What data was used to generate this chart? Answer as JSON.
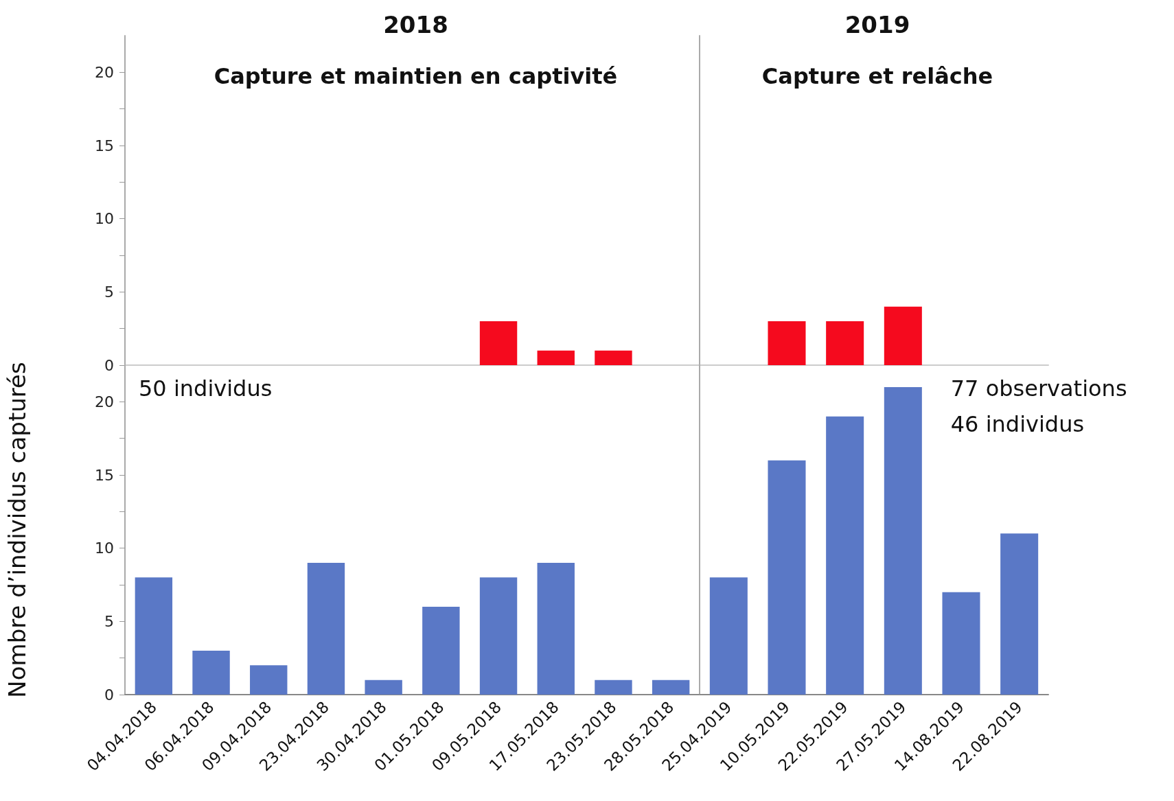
{
  "chart_data": [
    {
      "type": "bar",
      "title": "2018",
      "subtitle": "Capture et maintien en captivité",
      "categories": [
        "04.04.2018",
        "06.04.2018",
        "09.04.2018",
        "23.04.2018",
        "30.04.2018",
        "01.05.2018",
        "09.05.2018",
        "17.05.2018",
        "23.05.2018",
        "28.05.2018"
      ],
      "values": [
        0,
        0,
        0,
        0,
        0,
        0,
        3,
        1,
        1,
        0
      ],
      "color": "#f50a1e",
      "ylim": [
        0,
        22.5
      ],
      "yticks": [
        0,
        {
          "value": 2.5,
          "label": null
        },
        5,
        {
          "value": 7.5,
          "label": null
        },
        10,
        {
          "value": 12.5,
          "label": null
        },
        15,
        {
          "value": 17.5,
          "label": null
        },
        20
      ],
      "tick_labels": "y",
      "grid": false
    },
    {
      "type": "bar",
      "title": "2019",
      "subtitle": "Capture et relâche",
      "categories": [
        "25.04.2019",
        "10.05.2019",
        "22.05.2019",
        "27.05.2019",
        "14.08.2019",
        "22.08.2019"
      ],
      "values": [
        0,
        3,
        3,
        4,
        0,
        0
      ],
      "color": "#f50a1e",
      "ylim": [
        0,
        22.5
      ],
      "tick_labels": false,
      "grid": false
    },
    {
      "type": "bar",
      "ylabel": "Nombre d’individus capturés",
      "annotations": [
        "50 individus"
      ],
      "categories": [
        "04.04.2018",
        "06.04.2018",
        "09.04.2018",
        "23.04.2018",
        "30.04.2018",
        "01.05.2018",
        "09.05.2018",
        "17.05.2018",
        "23.05.2018",
        "28.05.2018"
      ],
      "values": [
        8,
        3,
        2,
        9,
        1,
        6,
        8,
        9,
        1,
        1
      ],
      "color": "#5a78c6",
      "ylim": [
        0,
        22.5
      ],
      "yticks": [
        0,
        {
          "value": 2.5,
          "label": null
        },
        5,
        {
          "value": 7.5,
          "label": null
        },
        10,
        {
          "value": 12.5,
          "label": null
        },
        15,
        {
          "value": 17.5,
          "label": null
        },
        20
      ],
      "grid": false
    },
    {
      "type": "bar",
      "annotations": [
        "77 observations",
        "46 individus"
      ],
      "categories": [
        "25.04.2019",
        "10.05.2019",
        "22.05.2019",
        "27.05.2019",
        "14.08.2019",
        "22.08.2019"
      ],
      "values": [
        8,
        16,
        19,
        21,
        7,
        11
      ],
      "color": "#5a78c6",
      "ylim": [
        0,
        22.5
      ],
      "tick_labels": "x",
      "grid": false
    }
  ]
}
